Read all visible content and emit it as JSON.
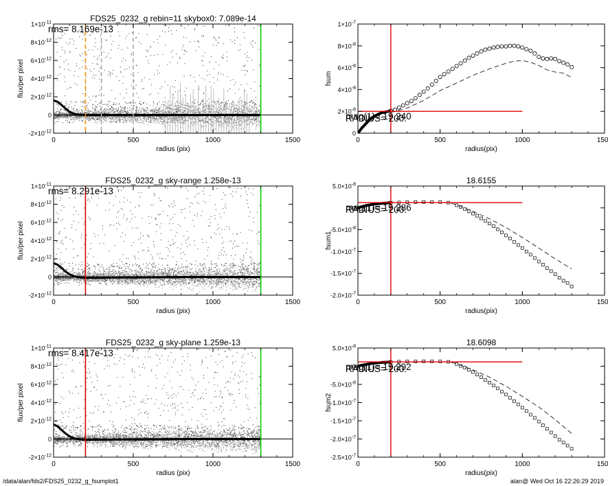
{
  "footer": {
    "path": "/data/alan/fds2/FDS25_0232_g_fsumplot1",
    "user_date": "alan@  Wed Oct 16 22:26:29 2019"
  },
  "colors": {
    "axis": "#000000",
    "scatter_dark": "#222222",
    "scatter_light": "#9a9a9a",
    "red": "#e00000",
    "green": "#00cc00",
    "orange": "#ff8c00",
    "dashed_gray": "#aaaaaa"
  },
  "chart_data": [
    {
      "id": "left1",
      "type": "scatter",
      "title": "FDS25_0232_g rebin=11    skybox0:  7.089e-14",
      "annotation": "rms= 8.169e-13",
      "xlabel": "radius (pix)",
      "ylabel": "flux/per pixel",
      "xlim": [
        0,
        1500
      ],
      "ylim": [
        -2e-12,
        1e-11
      ],
      "xticks": [
        {
          "v": 0,
          "label": "0"
        },
        {
          "v": 500,
          "label": "500"
        },
        {
          "v": 1000,
          "label": "1000"
        },
        {
          "v": 1500,
          "label": "1500"
        }
      ],
      "yticks": [
        {
          "v": -2e-12,
          "m": "-2×10",
          "e": "-12"
        },
        {
          "v": 0,
          "m": "0",
          "e": ""
        },
        {
          "v": 2e-12,
          "m": "2×10",
          "e": "-12"
        },
        {
          "v": 4e-12,
          "m": "4×10",
          "e": "-12"
        },
        {
          "v": 6e-12,
          "m": "6×10",
          "e": "-12"
        },
        {
          "v": 8e-12,
          "m": "8×10",
          "e": "-12"
        },
        {
          "v": 1e-11,
          "m": "1×10",
          "e": "-11"
        }
      ],
      "vlines": [
        {
          "x": 200,
          "color": "#ff8c00",
          "style": "dash"
        },
        {
          "x": 300,
          "color": "#aaaaaa",
          "style": "dash"
        },
        {
          "x": 500,
          "color": "#aaaaaa",
          "style": "dash"
        },
        {
          "x": 1300,
          "color": "#00cc00",
          "style": "solid"
        }
      ],
      "profile": [
        [
          0,
          1.6e-12
        ],
        [
          25,
          1.45e-12
        ],
        [
          50,
          1.1e-12
        ],
        [
          75,
          7e-13
        ],
        [
          100,
          3.5e-13
        ],
        [
          125,
          1.5e-13
        ],
        [
          150,
          5e-14
        ],
        [
          200,
          0
        ],
        [
          300,
          0
        ],
        [
          600,
          0
        ],
        [
          1300,
          0
        ]
      ],
      "has_error_bars": true
    },
    {
      "id": "right1",
      "type": "line",
      "title": "",
      "xlabel": "radius(pix)",
      "ylabel": "fsum",
      "xlim": [
        0,
        1500
      ],
      "ylim": [
        0,
        1e-07
      ],
      "xticks": [
        {
          "v": 0,
          "label": "0"
        },
        {
          "v": 500,
          "label": "500"
        },
        {
          "v": 1000,
          "label": "1000"
        },
        {
          "v": 1500,
          "label": "1500"
        }
      ],
      "yticks": [
        {
          "v": 0,
          "m": "0",
          "e": ""
        },
        {
          "v": 2e-08,
          "m": "2×10",
          "e": "-8"
        },
        {
          "v": 4e-08,
          "m": "4×10",
          "e": "-8"
        },
        {
          "v": 6e-08,
          "m": "6×10",
          "e": "-8"
        },
        {
          "v": 8e-08,
          "m": "8×10",
          "e": "-8"
        },
        {
          "v": 1e-07,
          "m": "1×10",
          "e": "-7"
        }
      ],
      "labels": [
        "mag(1)= 19.240",
        "RADIUS=   200."
      ],
      "cross": {
        "x": 200,
        "y": 2e-08,
        "x_end": 1000
      },
      "series": [
        {
          "style": "circles",
          "x": [
            0,
            25,
            50,
            75,
            100,
            125,
            150,
            175,
            200,
            225,
            250,
            275,
            300,
            325,
            350,
            375,
            400,
            425,
            450,
            475,
            500,
            525,
            550,
            575,
            600,
            625,
            650,
            675,
            700,
            725,
            750,
            775,
            800,
            825,
            850,
            875,
            900,
            925,
            950,
            975,
            1000,
            1025,
            1050,
            1075,
            1100,
            1125,
            1150,
            1175,
            1200,
            1225,
            1250,
            1275,
            1300
          ],
          "y": [
            0,
            5e-09,
            9e-09,
            1.3e-08,
            1.55e-08,
            1.75e-08,
            1.9e-08,
            1.97e-08,
            2.05e-08,
            2.15e-08,
            2.35e-08,
            2.55e-08,
            2.75e-08,
            2.95e-08,
            3.2e-08,
            3.5e-08,
            3.8e-08,
            4.1e-08,
            4.45e-08,
            4.8e-08,
            5.15e-08,
            5.4e-08,
            5.65e-08,
            5.9e-08,
            6.15e-08,
            6.4e-08,
            6.65e-08,
            6.9e-08,
            7.1e-08,
            7.3e-08,
            7.5e-08,
            7.65e-08,
            7.75e-08,
            7.85e-08,
            7.9e-08,
            7.95e-08,
            7.95e-08,
            8e-08,
            8e-08,
            7.95e-08,
            7.85e-08,
            7.7e-08,
            7.55e-08,
            7.3e-08,
            7e-08,
            6.85e-08,
            6.8e-08,
            6.85e-08,
            6.8e-08,
            6.6e-08,
            6.45e-08,
            6.3e-08,
            6.05e-08
          ]
        },
        {
          "style": "dash",
          "x": [
            200,
            300,
            400,
            500,
            600,
            700,
            800,
            900,
            950,
            1000,
            1050,
            1100,
            1150,
            1200,
            1250,
            1300
          ],
          "y": [
            1.9e-08,
            2.3e-08,
            3e-08,
            3.9e-08,
            4.6e-08,
            5.3e-08,
            5.9e-08,
            6.4e-08,
            6.6e-08,
            6.65e-08,
            6.5e-08,
            6.2e-08,
            5.8e-08,
            5.6e-08,
            5.5e-08,
            5.1e-08
          ]
        }
      ]
    },
    {
      "id": "left2",
      "type": "scatter",
      "title": "FDS25_0232_g sky-range  1.258e-13",
      "annotation": "rms= 8.291e-13",
      "xlabel": "radius (pix)",
      "ylabel": "flux/per pixel",
      "xlim": [
        0,
        1500
      ],
      "ylim": [
        -2e-12,
        1e-11
      ],
      "xticks": [
        {
          "v": 0,
          "label": "0"
        },
        {
          "v": 500,
          "label": "500"
        },
        {
          "v": 1000,
          "label": "1000"
        },
        {
          "v": 1500,
          "label": "1500"
        }
      ],
      "yticks": [
        {
          "v": -2e-12,
          "m": "-2×10",
          "e": "-12"
        },
        {
          "v": 0,
          "m": "0",
          "e": ""
        },
        {
          "v": 2e-12,
          "m": "2×10",
          "e": "-12"
        },
        {
          "v": 4e-12,
          "m": "4×10",
          "e": "-12"
        },
        {
          "v": 6e-12,
          "m": "6×10",
          "e": "-12"
        },
        {
          "v": 8e-12,
          "m": "8×10",
          "e": "-12"
        },
        {
          "v": 1e-11,
          "m": "1×10",
          "e": "-11"
        }
      ],
      "vlines": [
        {
          "x": 200,
          "color": "#e00000",
          "style": "solid"
        },
        {
          "x": 1300,
          "color": "#00cc00",
          "style": "solid"
        }
      ],
      "profile": [
        [
          0,
          1.5e-12
        ],
        [
          25,
          1.35e-12
        ],
        [
          50,
          1e-12
        ],
        [
          75,
          6e-13
        ],
        [
          100,
          3e-13
        ],
        [
          125,
          1e-13
        ],
        [
          150,
          0
        ],
        [
          200,
          -1e-13
        ],
        [
          400,
          -5e-14
        ],
        [
          800,
          0
        ],
        [
          1300,
          0
        ]
      ],
      "has_error_bars": false
    },
    {
      "id": "right2",
      "type": "line",
      "title": "18.6155",
      "xlabel": "radius(pix)",
      "ylabel": "fsum1",
      "xlim": [
        0,
        1500
      ],
      "ylim": [
        -2e-07,
        5e-08
      ],
      "xticks": [
        {
          "v": 0,
          "label": "0"
        },
        {
          "v": 500,
          "label": "500"
        },
        {
          "v": 1000,
          "label": "1000"
        },
        {
          "v": 1500,
          "label": "1500"
        }
      ],
      "yticks": [
        {
          "v": -2e-07,
          "m": "-2.0×10",
          "e": "-7"
        },
        {
          "v": -1.5e-07,
          "m": "-1.5×10",
          "e": "-7"
        },
        {
          "v": -1e-07,
          "m": "-1.0×10",
          "e": "-7"
        },
        {
          "v": -5e-08,
          "m": "-5.0×10",
          "e": "-8"
        },
        {
          "v": 0,
          "m": "0",
          "e": ""
        },
        {
          "v": 5e-08,
          "m": "5.0×10",
          "e": "-8"
        }
      ],
      "labels": [
        "mag(1)= 19.286",
        "RADIUS=   200."
      ],
      "cross": {
        "x": 200,
        "y": 1.2e-08,
        "x_end": 1000
      },
      "series": [
        {
          "style": "squares",
          "x": [
            0,
            25,
            50,
            75,
            100,
            125,
            150,
            175,
            200,
            250,
            300,
            350,
            400,
            450,
            500,
            550,
            600,
            625,
            650,
            675,
            700,
            725,
            750,
            775,
            800,
            825,
            850,
            875,
            900,
            925,
            950,
            975,
            1000,
            1025,
            1050,
            1075,
            1100,
            1125,
            1150,
            1175,
            1200,
            1225,
            1250,
            1275,
            1300
          ],
          "y": [
            0,
            3e-09,
            5e-09,
            7e-09,
            8.5e-09,
            9.5e-09,
            1.05e-08,
            1.12e-08,
            1.18e-08,
            1.25e-08,
            1.3e-08,
            1.33e-08,
            1.35e-08,
            1.35e-08,
            1.33e-08,
            1.2e-08,
            6e-09,
            2e-09,
            -3e-09,
            -8e-09,
            -1.3e-08,
            -1.8e-08,
            -2.4e-08,
            -3e-08,
            -3.6e-08,
            -4.2e-08,
            -4.9e-08,
            -5.6e-08,
            -6.3e-08,
            -7e-08,
            -7.8e-08,
            -8.5e-08,
            -9.2e-08,
            -1e-07,
            -1.07e-07,
            -1.15e-07,
            -1.23e-07,
            -1.3e-07,
            -1.38e-07,
            -1.45e-07,
            -1.52e-07,
            -1.6e-07,
            -1.67e-07,
            -1.72e-07,
            -1.8e-07
          ]
        },
        {
          "style": "dash",
          "x": [
            200,
            400,
            550,
            600,
            700,
            800,
            900,
            1000,
            1100,
            1200,
            1300
          ],
          "y": [
            1.18e-08,
            1.3e-08,
            1.2e-08,
            7e-09,
            -8e-09,
            -2.5e-08,
            -4.5e-08,
            -6.8e-08,
            -9.2e-08,
            -1.17e-07,
            -1.4e-07
          ]
        }
      ]
    },
    {
      "id": "left3",
      "type": "scatter",
      "title": "FDS25_0232_g sky-plane  1.259e-13",
      "annotation": "rms= 8.417e-13",
      "xlabel": "radius (pix)",
      "ylabel": "flux/per pixel",
      "xlim": [
        0,
        1500
      ],
      "ylim": [
        -2e-12,
        1e-11
      ],
      "xticks": [
        {
          "v": 0,
          "label": "0"
        },
        {
          "v": 500,
          "label": "500"
        },
        {
          "v": 1000,
          "label": "1000"
        },
        {
          "v": 1500,
          "label": "1500"
        }
      ],
      "yticks": [
        {
          "v": -2e-12,
          "m": "-2×10",
          "e": "-12"
        },
        {
          "v": 0,
          "m": "0",
          "e": ""
        },
        {
          "v": 2e-12,
          "m": "2×10",
          "e": "-12"
        },
        {
          "v": 4e-12,
          "m": "4×10",
          "e": "-12"
        },
        {
          "v": 6e-12,
          "m": "6×10",
          "e": "-12"
        },
        {
          "v": 8e-12,
          "m": "8×10",
          "e": "-12"
        },
        {
          "v": 1e-11,
          "m": "1×10",
          "e": "-11"
        }
      ],
      "vlines": [
        {
          "x": 200,
          "color": "#e00000",
          "style": "solid"
        },
        {
          "x": 1300,
          "color": "#00cc00",
          "style": "solid"
        }
      ],
      "profile": [
        [
          0,
          1.6e-12
        ],
        [
          25,
          1.4e-12
        ],
        [
          50,
          1e-12
        ],
        [
          75,
          6e-13
        ],
        [
          100,
          3e-13
        ],
        [
          125,
          1e-13
        ],
        [
          150,
          0
        ],
        [
          200,
          -1e-13
        ],
        [
          400,
          -5e-14
        ],
        [
          800,
          0
        ],
        [
          1300,
          0
        ]
      ],
      "has_error_bars": false
    },
    {
      "id": "right3",
      "type": "line",
      "title": "18.6098",
      "xlabel": "radius(pix)",
      "ylabel": "fsum2",
      "xlim": [
        0,
        1500
      ],
      "ylim": [
        -2.5e-07,
        5e-08
      ],
      "xticks": [
        {
          "v": 0,
          "label": "0"
        },
        {
          "v": 500,
          "label": "500"
        },
        {
          "v": 1000,
          "label": "1000"
        },
        {
          "v": 1500,
          "label": "1500"
        }
      ],
      "yticks": [
        {
          "v": -2.5e-07,
          "m": "-2.5×10",
          "e": "-7"
        },
        {
          "v": -2e-07,
          "m": "-2.0×10",
          "e": "-7"
        },
        {
          "v": -1.5e-07,
          "m": "-1.5×10",
          "e": "-7"
        },
        {
          "v": -1e-07,
          "m": "-1.0×10",
          "e": "-7"
        },
        {
          "v": -5e-08,
          "m": "-5.0×10",
          "e": "-8"
        },
        {
          "v": 0,
          "m": "0",
          "e": ""
        },
        {
          "v": 5e-08,
          "m": "5.0×10",
          "e": "-8"
        }
      ],
      "labels": [
        "mag(1)= 19.292",
        "RADIUS=   200."
      ],
      "cross": {
        "x": 200,
        "y": 1.2e-08,
        "x_end": 1000
      },
      "series": [
        {
          "style": "squares",
          "x": [
            0,
            25,
            50,
            75,
            100,
            125,
            150,
            175,
            200,
            250,
            300,
            350,
            400,
            450,
            500,
            550,
            600,
            625,
            650,
            675,
            700,
            725,
            750,
            775,
            800,
            825,
            850,
            875,
            900,
            925,
            950,
            975,
            1000,
            1025,
            1050,
            1075,
            1100,
            1125,
            1150,
            1175,
            1200,
            1225,
            1250,
            1275,
            1300
          ],
          "y": [
            0,
            3e-09,
            5e-09,
            7e-09,
            8.5e-09,
            9.5e-09,
            1.05e-08,
            1.12e-08,
            1.18e-08,
            1.25e-08,
            1.3e-08,
            1.33e-08,
            1.35e-08,
            1.35e-08,
            1.33e-08,
            1.2e-08,
            6e-09,
            1e-09,
            -4e-09,
            -1e-08,
            -1.6e-08,
            -2.3e-08,
            -3e-08,
            -3.8e-08,
            -4.5e-08,
            -5.3e-08,
            -6.1e-08,
            -7e-08,
            -7.8e-08,
            -8.7e-08,
            -9.6e-08,
            -1.05e-07,
            -1.14e-07,
            -1.23e-07,
            -1.33e-07,
            -1.42e-07,
            -1.52e-07,
            -1.62e-07,
            -1.72e-07,
            -1.82e-07,
            -1.92e-07,
            -2.02e-07,
            -2.1e-07,
            -2.18e-07,
            -2.27e-07
          ]
        },
        {
          "style": "dash",
          "x": [
            200,
            400,
            550,
            600,
            700,
            800,
            900,
            1000,
            1100,
            1200,
            1300
          ],
          "y": [
            1.18e-08,
            1.3e-08,
            1.2e-08,
            7e-09,
            -1e-08,
            -3e-08,
            -5.5e-08,
            -8.3e-08,
            -1.12e-07,
            -1.47e-07,
            -1.85e-07
          ]
        }
      ]
    }
  ]
}
